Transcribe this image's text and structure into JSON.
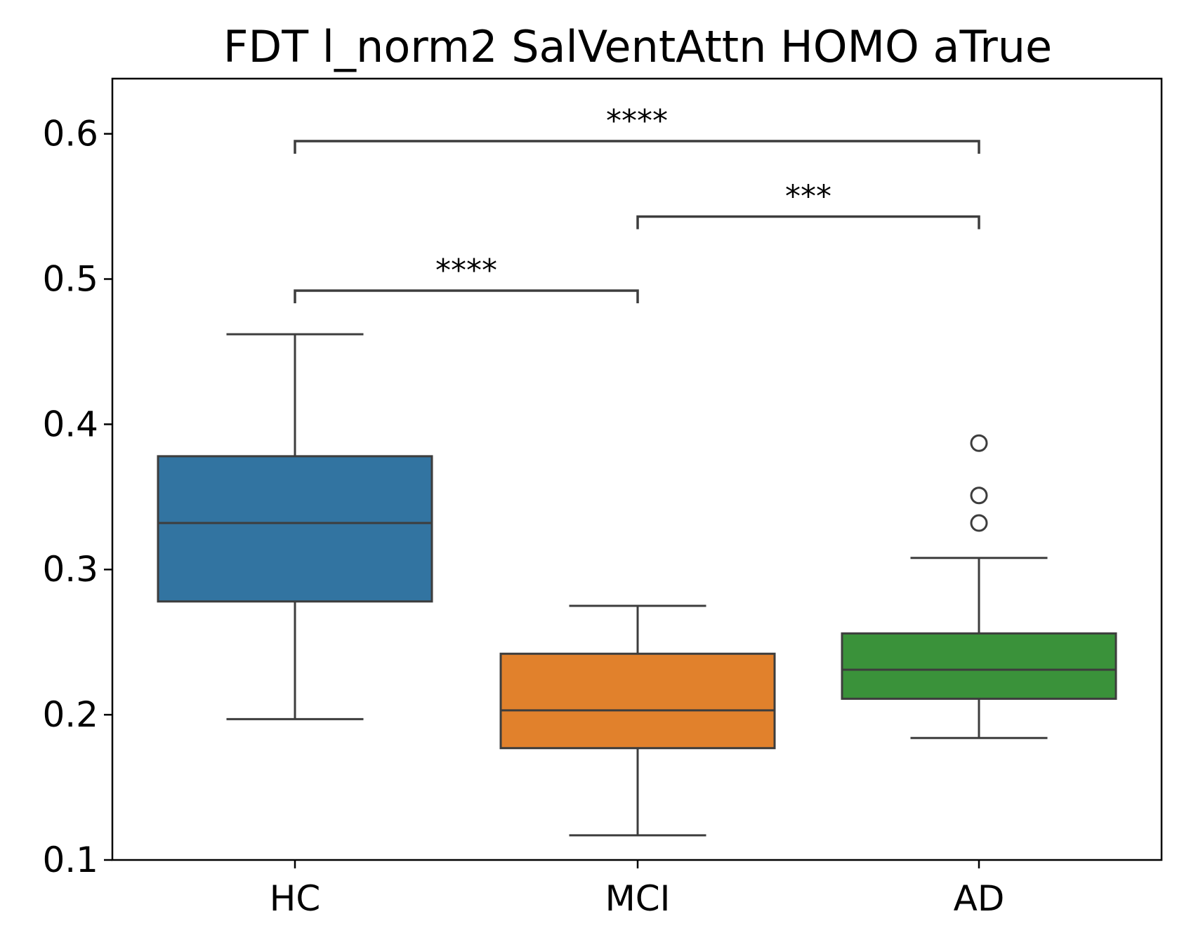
{
  "chart_data": {
    "type": "box",
    "title": "FDT l_norm2 SalVentAttn HOMO aTrue",
    "xlabel": "",
    "ylabel": "",
    "ylim": [
      0.1,
      0.638
    ],
    "yticks": [
      "0.1",
      "0.2",
      "0.3",
      "0.4",
      "0.5",
      "0.6"
    ],
    "categories": [
      "HC",
      "MCI",
      "AD"
    ],
    "grid": false,
    "legend": "none",
    "boxes": [
      {
        "category": "HC",
        "color": "#3274a1",
        "whisker_low": 0.197,
        "q1": 0.278,
        "median": 0.332,
        "q3": 0.378,
        "whisker_high": 0.462,
        "outliers": []
      },
      {
        "category": "MCI",
        "color": "#e1812c",
        "whisker_low": 0.117,
        "q1": 0.177,
        "median": 0.203,
        "q3": 0.242,
        "whisker_high": 0.275,
        "outliers": []
      },
      {
        "category": "AD",
        "color": "#3a923a",
        "whisker_low": 0.184,
        "q1": 0.211,
        "median": 0.231,
        "q3": 0.256,
        "whisker_high": 0.308,
        "outliers": [
          0.332,
          0.351,
          0.387
        ]
      }
    ],
    "annotations": [
      {
        "from": "HC",
        "to": "MCI",
        "y": 0.492,
        "label": "****"
      },
      {
        "from": "MCI",
        "to": "AD",
        "y": 0.543,
        "label": "***"
      },
      {
        "from": "HC",
        "to": "AD",
        "y": 0.595,
        "label": "****"
      }
    ]
  }
}
